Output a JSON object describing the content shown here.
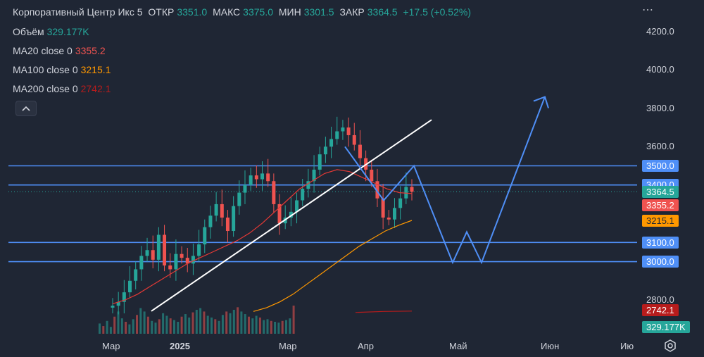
{
  "header": {
    "title": "Корпоративный Центр Икс 5",
    "open_label": "ОТКР",
    "open_value": "3351.0",
    "high_label": "МАКС",
    "high_value": "3375.0",
    "low_label": "МИН",
    "low_value": "3301.5",
    "close_label": "ЗАКР",
    "close_value": "3364.5",
    "change": "+17.5 (+0.52%)"
  },
  "indicators": {
    "volume_label": "Объём",
    "volume_value": "329.177K",
    "ma20_label": "MA20 close 0",
    "ma20_value": "3355.2",
    "ma100_label": "MA100 close 0",
    "ma100_value": "3215.1",
    "ma200_label": "MA200 close 0",
    "ma200_value": "2742.1"
  },
  "controls": {
    "collapse_icon": "chevron-up-icon",
    "more_icon": "more-icon",
    "settings_icon": "settings-icon"
  },
  "colors": {
    "up": "#26a69a",
    "down": "#ef5350",
    "ma20": "#e53935",
    "ma100": "#ff9800",
    "ma200": "#b71c1c",
    "level": "#4f8ff7",
    "trend": "#ffffff",
    "background": "#1f2634"
  },
  "chart_data": {
    "type": "candlestick",
    "y_axis": {
      "ticks": [
        "4200.0",
        "4000.0",
        "3800.0",
        "3600.0",
        "2800.0"
      ],
      "ylim": [
        2735,
        4260
      ]
    },
    "x_axis": {
      "ticks": [
        "Мар",
        "2025",
        "Мар",
        "Апр",
        "Май",
        "Июн",
        "Ию"
      ]
    },
    "price_badges": [
      {
        "label": "3500.0",
        "value": 3500,
        "kind": "level"
      },
      {
        "label": "3400.0",
        "value": 3400,
        "kind": "level"
      },
      {
        "label": "3364.5",
        "value": 3364.5,
        "kind": "last"
      },
      {
        "label": "3355.2",
        "value": 3355.2,
        "kind": "ma20"
      },
      {
        "label": "3215.1",
        "value": 3215.1,
        "kind": "ma100"
      },
      {
        "label": "3100.0",
        "value": 3100,
        "kind": "level"
      },
      {
        "label": "3000.0",
        "value": 3000,
        "kind": "level"
      },
      {
        "label": "2742.1",
        "value": 2742.1,
        "kind": "ma200"
      },
      {
        "label": "329.177K",
        "value": 329.177,
        "kind": "volume"
      }
    ],
    "horizontal_levels": [
      3500,
      3400,
      3100,
      3000
    ],
    "trendline": {
      "from": [
        0,
        2742
      ],
      "to": [
        130,
        3740
      ]
    },
    "projection": [
      [
        90,
        3590
      ],
      [
        96,
        3320
      ],
      [
        102,
        3500
      ],
      [
        112,
        2995
      ],
      [
        118,
        3155
      ],
      [
        124,
        2995
      ],
      [
        152,
        3860
      ]
    ],
    "close_path": [
      2770,
      2790,
      2840,
      2900,
      2960,
      3030,
      3060,
      3010,
      3140,
      2980,
      2960,
      3040,
      3020,
      2990,
      3030,
      3090,
      3180,
      3240,
      3300,
      3230,
      3160,
      3290,
      3360,
      3400,
      3450,
      3430,
      3460,
      3420,
      3300,
      3200,
      3230,
      3260,
      3320,
      3380,
      3420,
      3480,
      3560,
      3600,
      3640,
      3680,
      3700,
      3660,
      3610,
      3540,
      3480,
      3420,
      3330,
      3230,
      3220,
      3280,
      3330,
      3390,
      3364.5
    ],
    "ma20": [
      2780,
      2800,
      2830,
      2870,
      2910,
      2950,
      2990,
      3020,
      3050,
      3080,
      3110,
      3150,
      3200,
      3260,
      3320,
      3380,
      3420,
      3460,
      3480,
      3470,
      3440,
      3410,
      3380,
      3360,
      3355.2
    ],
    "ma100": [
      2740,
      2760,
      2790,
      2830,
      2880,
      2930,
      2980,
      3030,
      3080,
      3120,
      3160,
      3190,
      3215.1
    ],
    "ma200": [
      2735,
      2740,
      2742.1
    ],
    "volume_k": [
      120,
      90,
      150,
      80,
      200,
      260,
      180,
      140,
      110,
      170,
      220,
      300,
      260,
      200,
      150,
      130,
      170,
      240,
      210,
      180,
      160,
      140,
      200,
      230,
      190,
      250,
      280,
      300,
      260,
      210,
      190,
      170,
      150,
      220,
      260,
      240,
      280,
      310,
      260,
      230,
      200,
      180,
      210,
      190,
      160,
      170,
      150,
      140,
      130,
      150,
      160,
      180,
      329.177
    ]
  }
}
